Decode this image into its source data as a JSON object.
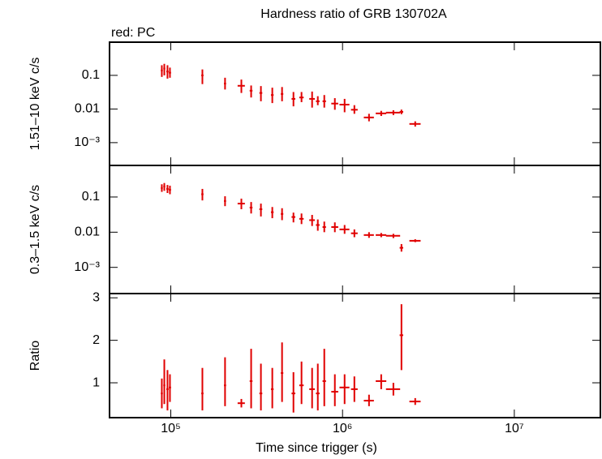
{
  "chart_data": [
    {
      "type": "errorbar",
      "title": "Hardness ratio of GRB 130702A",
      "annotation": "red: PC",
      "ylabel": "1.51–10 keV c/s",
      "log_y": true,
      "log_x": true,
      "color": "#e00000",
      "xlim": [
        44000,
        31700000
      ],
      "ylim": [
        0.00021,
        0.97
      ],
      "yticks": [
        {
          "value": 0.1,
          "label": "0.1"
        },
        {
          "value": 0.01,
          "label": "0.01"
        },
        {
          "value": 0.001,
          "label": "10⁻³"
        }
      ],
      "x": [
        88700,
        91700,
        95700,
        98900,
        152800,
        207000,
        257600,
        293700,
        334800,
        390000,
        444500,
        517900,
        577000,
        665000,
        717700,
        783000,
        902000,
        1028000,
        1172000,
        1426000,
        1679000,
        1977000,
        2203000,
        2649000
      ],
      "xlow": [
        87500,
        90500,
        94200,
        97400,
        150500,
        204000,
        245000,
        288000,
        328000,
        383000,
        437000,
        505000,
        560000,
        640000,
        700000,
        765000,
        860000,
        960000,
        1120000,
        1330000,
        1560000,
        1790000,
        2150000,
        2450000
      ],
      "xhigh": [
        89900,
        92900,
        97200,
        100400,
        155100,
        210000,
        270000,
        299000,
        341000,
        397000,
        452000,
        531000,
        594000,
        690000,
        735000,
        801000,
        944000,
        1096000,
        1225000,
        1522000,
        1798000,
        2164000,
        2256000,
        2848000
      ],
      "values": [
        0.14,
        0.16,
        0.13,
        0.12,
        0.1,
        0.057,
        0.049,
        0.035,
        0.03,
        0.026,
        0.028,
        0.02,
        0.022,
        0.02,
        0.017,
        0.017,
        0.0145,
        0.0135,
        0.0095,
        0.0056,
        0.0074,
        0.0078,
        0.0082,
        0.0036
      ],
      "ylow": [
        0.09,
        0.1,
        0.08,
        0.085,
        0.055,
        0.038,
        0.03,
        0.022,
        0.017,
        0.015,
        0.017,
        0.012,
        0.016,
        0.011,
        0.013,
        0.011,
        0.0095,
        0.008,
        0.0072,
        0.0043,
        0.0062,
        0.0066,
        0.007,
        0.003
      ],
      "yhigh": [
        0.2,
        0.22,
        0.2,
        0.17,
        0.15,
        0.085,
        0.075,
        0.05,
        0.048,
        0.043,
        0.045,
        0.032,
        0.032,
        0.033,
        0.024,
        0.026,
        0.021,
        0.02,
        0.013,
        0.0072,
        0.0088,
        0.0092,
        0.0096,
        0.0043
      ]
    },
    {
      "type": "errorbar",
      "ylabel": "0.3–1.5 keV c/s",
      "log_y": true,
      "log_x": true,
      "color": "#e00000",
      "xlim": [
        44000,
        31700000
      ],
      "ylim": [
        0.00018,
        0.79
      ],
      "yticks": [
        {
          "value": 0.1,
          "label": "0.1"
        },
        {
          "value": 0.01,
          "label": "0.01"
        },
        {
          "value": 0.001,
          "label": "10⁻³"
        }
      ],
      "x": [
        88700,
        91700,
        95700,
        98900,
        152800,
        207000,
        257600,
        293700,
        334800,
        390000,
        444500,
        517900,
        577000,
        665000,
        717700,
        783000,
        902000,
        1028000,
        1172000,
        1426000,
        1679000,
        1977000,
        2203000,
        2649000
      ],
      "xlow": [
        87500,
        90500,
        94200,
        97400,
        150500,
        204000,
        245000,
        288000,
        328000,
        383000,
        437000,
        505000,
        560000,
        640000,
        700000,
        765000,
        860000,
        960000,
        1120000,
        1330000,
        1560000,
        1790000,
        2150000,
        2450000
      ],
      "xhigh": [
        89900,
        92900,
        97200,
        100400,
        155100,
        210000,
        270000,
        299000,
        341000,
        397000,
        452000,
        531000,
        594000,
        690000,
        735000,
        801000,
        944000,
        1096000,
        1225000,
        1522000,
        1798000,
        2164000,
        2256000,
        2848000
      ],
      "values": [
        0.18,
        0.2,
        0.17,
        0.16,
        0.12,
        0.077,
        0.065,
        0.05,
        0.045,
        0.037,
        0.033,
        0.027,
        0.024,
        0.022,
        0.016,
        0.014,
        0.014,
        0.012,
        0.0093,
        0.0083,
        0.0083,
        0.0079,
        0.0036,
        0.0057
      ],
      "ylow": [
        0.14,
        0.15,
        0.13,
        0.12,
        0.08,
        0.055,
        0.045,
        0.034,
        0.028,
        0.025,
        0.022,
        0.019,
        0.017,
        0.015,
        0.011,
        0.01,
        0.01,
        0.009,
        0.0072,
        0.0069,
        0.0072,
        0.0068,
        0.0028,
        0.0052
      ],
      "yhigh": [
        0.23,
        0.25,
        0.22,
        0.21,
        0.17,
        0.105,
        0.09,
        0.072,
        0.065,
        0.052,
        0.048,
        0.036,
        0.034,
        0.031,
        0.023,
        0.02,
        0.019,
        0.016,
        0.012,
        0.01,
        0.0095,
        0.009,
        0.0046,
        0.0063
      ]
    },
    {
      "type": "errorbar",
      "ylabel": "Ratio",
      "xlabel": "Time since trigger (s)",
      "log_y": false,
      "log_x": true,
      "color": "#e00000",
      "xlim": [
        44000,
        31700000
      ],
      "ylim": [
        0.18,
        3.1
      ],
      "yticks": [
        1,
        2,
        3
      ],
      "xticks": [
        {
          "value": 100000,
          "label": "10⁵"
        },
        {
          "value": 1000000,
          "label": "10⁶"
        },
        {
          "value": 10000000,
          "label": "10⁷"
        }
      ],
      "x": [
        88700,
        91700,
        95700,
        98900,
        152800,
        207000,
        257600,
        293700,
        334800,
        390000,
        444500,
        517900,
        577000,
        665000,
        717700,
        783000,
        902000,
        1028000,
        1172000,
        1426000,
        1679000,
        1977000,
        2203000,
        2649000
      ],
      "xlow": [
        87500,
        90500,
        94200,
        97400,
        150500,
        204000,
        245000,
        288000,
        328000,
        383000,
        437000,
        505000,
        560000,
        640000,
        700000,
        765000,
        860000,
        960000,
        1120000,
        1330000,
        1560000,
        1790000,
        2150000,
        2450000
      ],
      "xhigh": [
        89900,
        92900,
        97200,
        100400,
        155100,
        210000,
        270000,
        299000,
        341000,
        397000,
        452000,
        531000,
        594000,
        690000,
        735000,
        801000,
        944000,
        1096000,
        1225000,
        1522000,
        1798000,
        2164000,
        2256000,
        2848000
      ],
      "values": [
        0.75,
        0.94,
        0.85,
        0.89,
        0.75,
        0.94,
        0.52,
        1.04,
        0.75,
        0.85,
        1.23,
        0.75,
        0.94,
        0.85,
        0.75,
        1.04,
        0.79,
        0.89,
        0.85,
        0.58,
        1.04,
        0.85,
        2.12,
        0.56
      ],
      "ylow": [
        0.4,
        0.5,
        0.35,
        0.55,
        0.35,
        0.45,
        0.42,
        0.4,
        0.35,
        0.4,
        0.55,
        0.3,
        0.5,
        0.4,
        0.35,
        0.45,
        0.45,
        0.5,
        0.55,
        0.45,
        0.85,
        0.7,
        1.3,
        0.48
      ],
      "yhigh": [
        1.1,
        1.55,
        1.3,
        1.2,
        1.35,
        1.6,
        0.62,
        1.8,
        1.45,
        1.35,
        1.95,
        1.25,
        1.5,
        1.35,
        1.45,
        1.8,
        1.2,
        1.2,
        1.15,
        0.72,
        1.2,
        1.0,
        2.85,
        0.64
      ]
    }
  ]
}
